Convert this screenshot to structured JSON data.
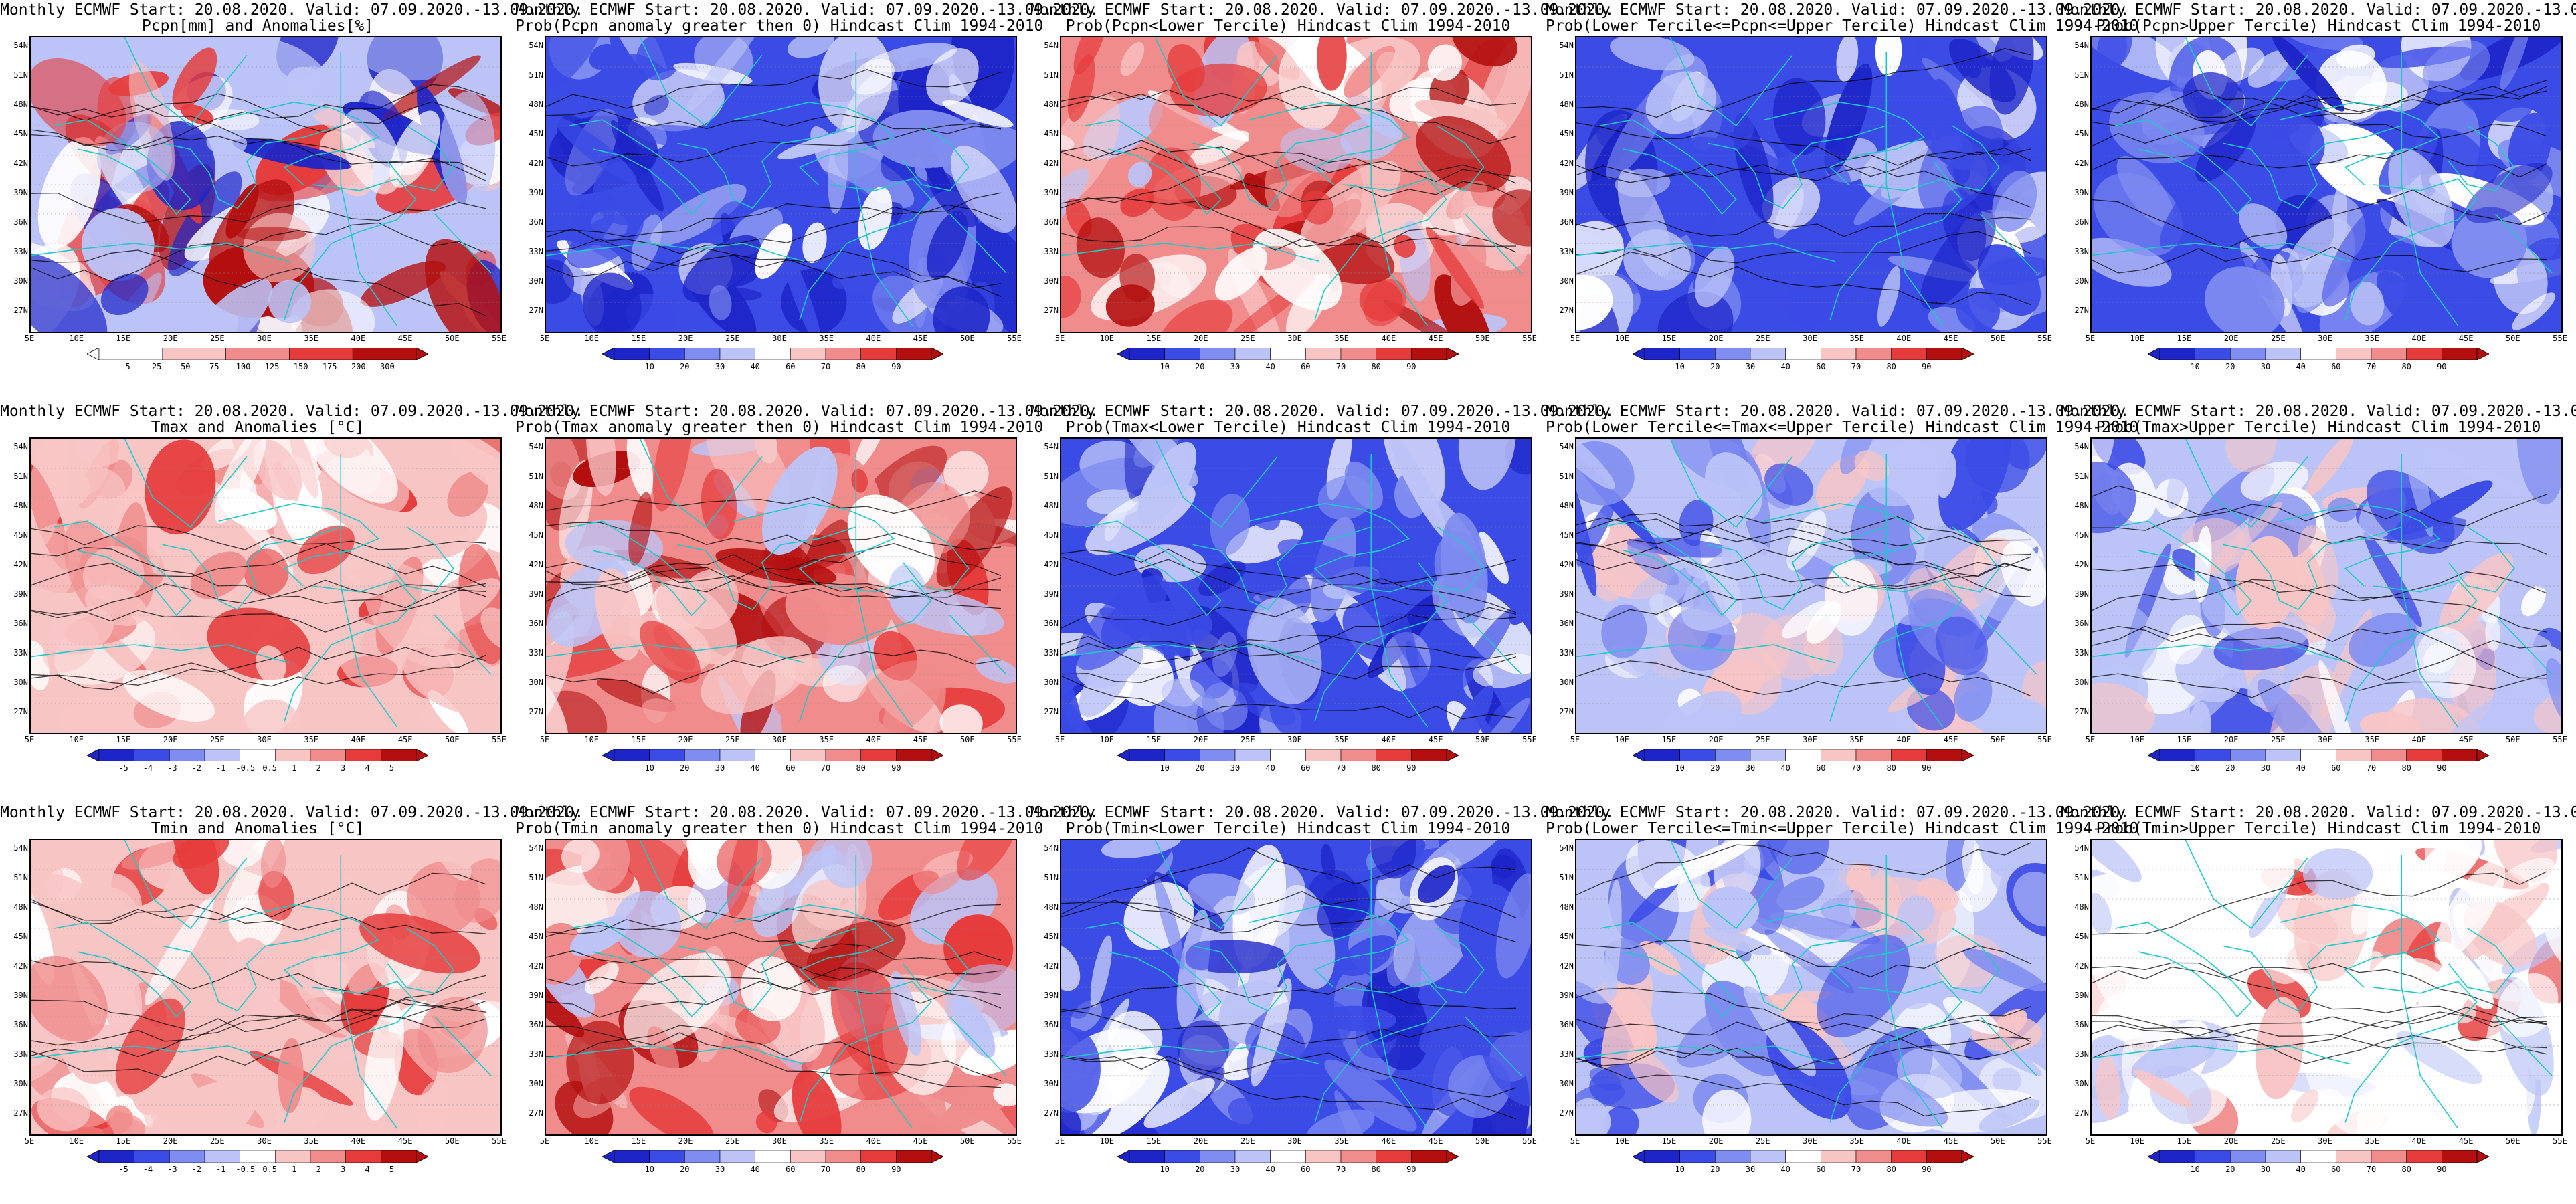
{
  "header": "Monthly ECMWF Start: 20.08.2020. Valid: 07.09.2020.-13.09.2020.",
  "lat_labels": [
    "54N",
    "51N",
    "48N",
    "45N",
    "42N",
    "39N",
    "36N",
    "33N",
    "30N",
    "27N"
  ],
  "lon_labels": [
    "5E",
    "10E",
    "15E",
    "20E",
    "25E",
    "30E",
    "35E",
    "40E",
    "45E",
    "50E",
    "55E"
  ],
  "colors": {
    "deep_blue": "#1d25c8",
    "blue": "#3b4be6",
    "mid_blue": "#7f8cf0",
    "light_blue": "#bcc4f7",
    "white": "#ffffff",
    "light_red": "#f8c5c5",
    "mid_red": "#f08c8c",
    "red": "#e63b3b",
    "deep_red": "#b40f0f",
    "coast": "#1fc9c9",
    "contour": "#000000"
  },
  "colorbars": {
    "precip": [
      "5",
      "25",
      "50",
      "75",
      "100",
      "125",
      "150",
      "175",
      "200",
      "300"
    ],
    "prob": [
      "10",
      "20",
      "30",
      "40",
      "60",
      "70",
      "80",
      "90"
    ],
    "anom": [
      "-5",
      "-4",
      "-3",
      "-2",
      "-1",
      "-0.5",
      "0.5",
      "1",
      "2",
      "3",
      "4",
      "5"
    ]
  },
  "rows": [
    {
      "panels": [
        {
          "subtitle": "Pcpn[mm] and Anomalies[%]",
          "colorbar": "precip",
          "fill": "mixed"
        },
        {
          "subtitle": "Prob(Pcpn anomaly greater then 0) Hindcast Clim 1994-2010",
          "colorbar": "prob",
          "fill": "blue"
        },
        {
          "subtitle": "Prob(Pcpn<Lower Tercile) Hindcast Clim 1994-2010",
          "colorbar": "prob",
          "fill": "red"
        },
        {
          "subtitle": "Prob(Lower Tercile<=Pcpn<=Upper Tercile) Hindcast Clim 1994-2010",
          "colorbar": "prob",
          "fill": "blue"
        },
        {
          "subtitle": "Prob(Pcpn>Upper Tercile) Hindcast Clim 1994-2010",
          "colorbar": "prob",
          "fill": "blue"
        }
      ]
    },
    {
      "panels": [
        {
          "subtitle": "Tmax and Anomalies [°C]",
          "colorbar": "anom",
          "fill": "lightred"
        },
        {
          "subtitle": "Prob(Tmax anomaly greater then 0) Hindcast Clim 1994-2010",
          "colorbar": "prob",
          "fill": "red"
        },
        {
          "subtitle": "Prob(Tmax<Lower Tercile) Hindcast Clim 1994-2010",
          "colorbar": "prob",
          "fill": "blue"
        },
        {
          "subtitle": "Prob(Lower Tercile<=Tmax<=Upper Tercile) Hindcast Clim 1994-2010",
          "colorbar": "prob",
          "fill": "lightblue"
        },
        {
          "subtitle": "Prob(Tmax>Upper Tercile) Hindcast Clim 1994-2010",
          "colorbar": "prob",
          "fill": "lightblue"
        }
      ]
    },
    {
      "panels": [
        {
          "subtitle": "Tmin and Anomalies [°C]",
          "colorbar": "anom",
          "fill": "lightred"
        },
        {
          "subtitle": "Prob(Tmin anomaly greater then 0) Hindcast Clim 1994-2010",
          "colorbar": "prob",
          "fill": "red"
        },
        {
          "subtitle": "Prob(Tmin<Lower Tercile) Hindcast Clim 1994-2010",
          "colorbar": "prob",
          "fill": "blue"
        },
        {
          "subtitle": "Prob(Lower Tercile<=Tmin<=Upper Tercile) Hindcast Clim 1994-2010",
          "colorbar": "prob",
          "fill": "lightblue"
        },
        {
          "subtitle": "Prob(Tmin>Upper Tercile) Hindcast Clim 1994-2010",
          "colorbar": "prob",
          "fill": "white"
        }
      ]
    }
  ]
}
